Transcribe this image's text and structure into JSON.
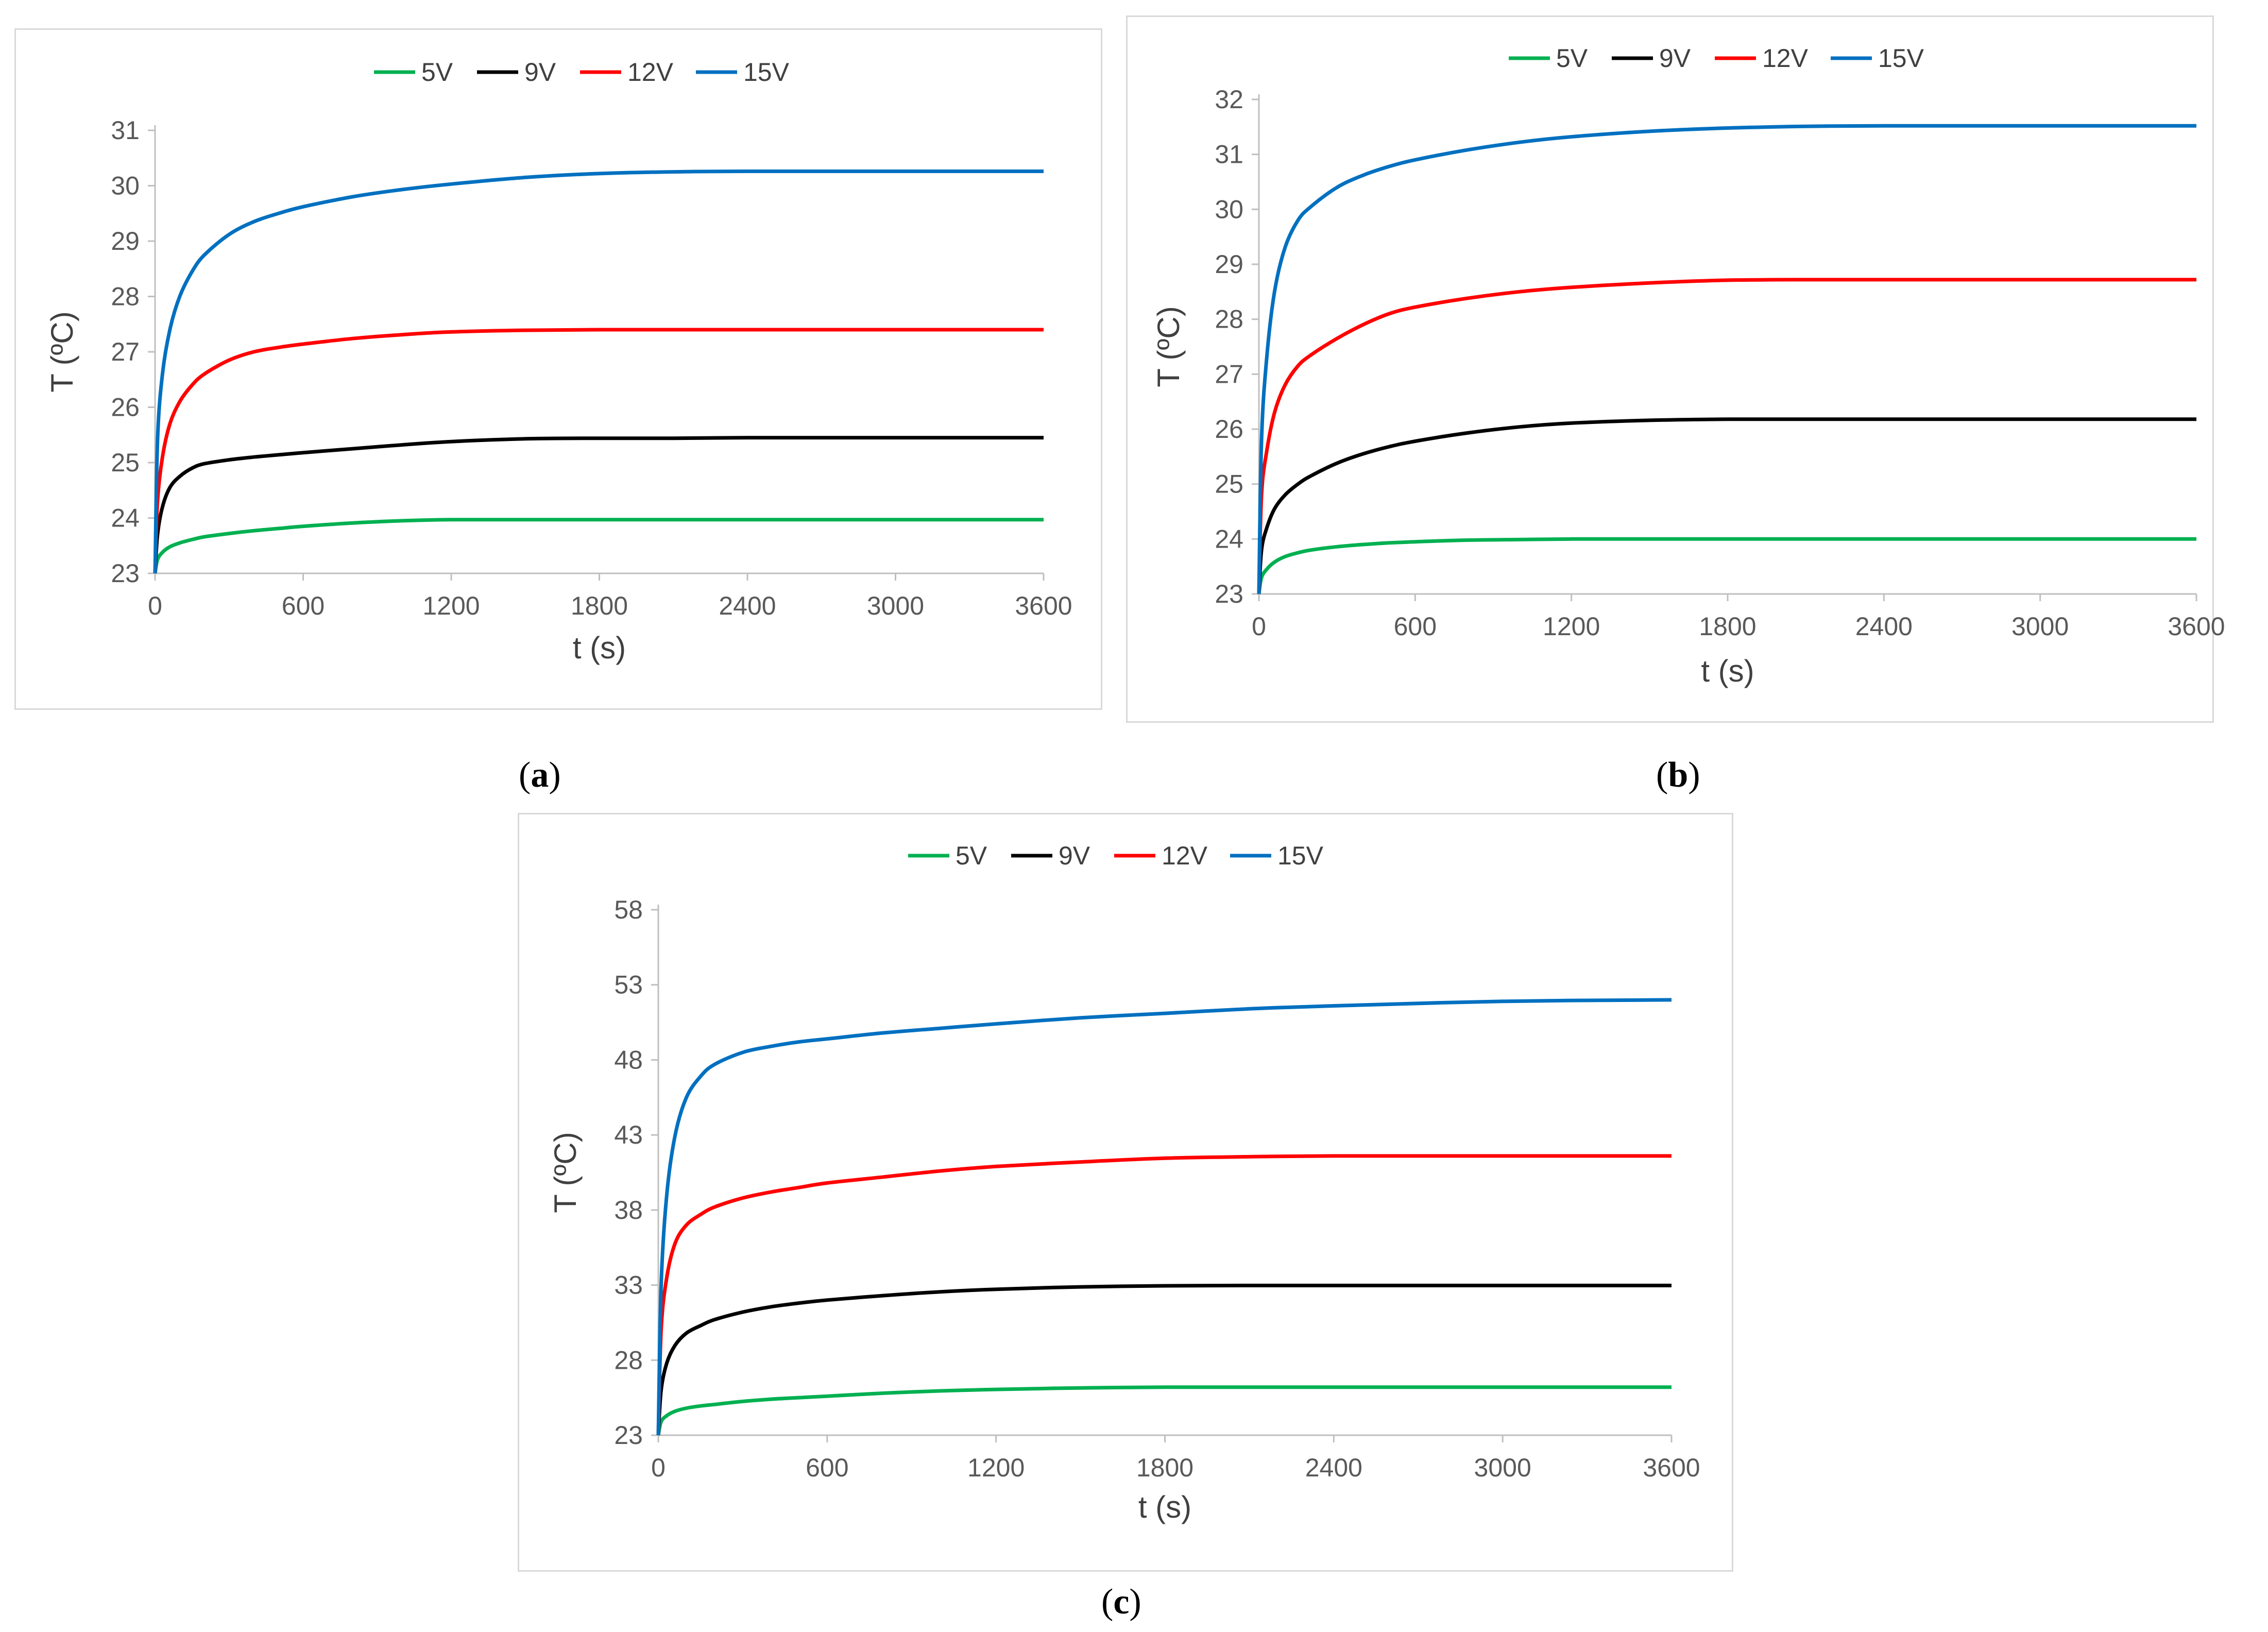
{
  "chart_data": [
    {
      "id": "a",
      "type": "line",
      "caption": "a",
      "title": "",
      "xlabel": "t (s)",
      "ylabel": "T (ºC)",
      "xlim": [
        0,
        3600
      ],
      "ylim": [
        23,
        31
      ],
      "xticks": [
        0,
        600,
        1200,
        1800,
        2400,
        3000,
        3600
      ],
      "yticks": [
        23,
        24,
        25,
        26,
        27,
        28,
        29,
        30,
        31
      ],
      "grid": false,
      "legend_position": "top-center",
      "x": [
        0,
        10,
        30,
        60,
        100,
        150,
        200,
        300,
        400,
        500,
        600,
        800,
        1000,
        1200,
        1500,
        1800,
        2100,
        2400,
        3000,
        3600
      ],
      "series": [
        {
          "name": "5V",
          "color": "#00b050",
          "values": [
            23.0,
            23.25,
            23.38,
            23.48,
            23.55,
            23.61,
            23.66,
            23.72,
            23.77,
            23.81,
            23.85,
            23.91,
            23.95,
            23.97,
            23.97,
            23.97,
            23.97,
            23.97,
            23.97,
            23.97
          ]
        },
        {
          "name": "9V",
          "color": "#000000",
          "values": [
            23.0,
            23.7,
            24.2,
            24.55,
            24.75,
            24.9,
            24.98,
            25.05,
            25.1,
            25.14,
            25.18,
            25.25,
            25.32,
            25.38,
            25.43,
            25.44,
            25.44,
            25.45,
            25.45,
            25.45
          ]
        },
        {
          "name": "12V",
          "color": "#ff0000",
          "values": [
            23.0,
            24.3,
            25.1,
            25.7,
            26.1,
            26.4,
            26.6,
            26.85,
            27.0,
            27.08,
            27.14,
            27.24,
            27.31,
            27.36,
            27.39,
            27.4,
            27.4,
            27.4,
            27.4,
            27.4
          ]
        },
        {
          "name": "15V",
          "color": "#0070c0",
          "values": [
            23.0,
            25.4,
            26.6,
            27.4,
            28.0,
            28.45,
            28.75,
            29.12,
            29.35,
            29.5,
            29.62,
            29.8,
            29.93,
            30.03,
            30.15,
            30.22,
            30.25,
            30.26,
            30.26,
            30.26
          ]
        }
      ]
    },
    {
      "id": "b",
      "type": "line",
      "caption": "b",
      "title": "",
      "xlabel": "t (s)",
      "ylabel": "T (ºC)",
      "xlim": [
        0,
        3600
      ],
      "ylim": [
        23,
        32
      ],
      "xticks": [
        0,
        600,
        1200,
        1800,
        2400,
        3000,
        3600
      ],
      "yticks": [
        23,
        24,
        25,
        26,
        27,
        28,
        29,
        30,
        31,
        32
      ],
      "grid": false,
      "legend_position": "top-center",
      "x": [
        0,
        10,
        30,
        60,
        100,
        150,
        200,
        300,
        400,
        500,
        600,
        800,
        1000,
        1200,
        1500,
        1800,
        2100,
        2400,
        3000,
        3600
      ],
      "series": [
        {
          "name": "5V",
          "color": "#00b050",
          "values": [
            23.0,
            23.3,
            23.45,
            23.58,
            23.68,
            23.75,
            23.8,
            23.86,
            23.9,
            23.93,
            23.95,
            23.98,
            23.99,
            24.0,
            24.0,
            24.0,
            24.0,
            24.0,
            24.0,
            24.0
          ]
        },
        {
          "name": "9V",
          "color": "#000000",
          "values": [
            23.0,
            23.8,
            24.2,
            24.55,
            24.8,
            25.0,
            25.15,
            25.38,
            25.55,
            25.68,
            25.78,
            25.93,
            26.04,
            26.11,
            26.16,
            26.18,
            26.18,
            26.18,
            26.18,
            26.18
          ]
        },
        {
          "name": "12V",
          "color": "#ff0000",
          "values": [
            23.0,
            24.8,
            25.6,
            26.3,
            26.8,
            27.15,
            27.35,
            27.65,
            27.9,
            28.1,
            28.22,
            28.38,
            28.5,
            28.58,
            28.66,
            28.71,
            28.72,
            28.72,
            28.72,
            28.72
          ]
        },
        {
          "name": "15V",
          "color": "#0070c0",
          "values": [
            23.0,
            25.8,
            27.3,
            28.5,
            29.3,
            29.8,
            30.05,
            30.4,
            30.62,
            30.78,
            30.9,
            31.08,
            31.22,
            31.32,
            31.42,
            31.48,
            31.51,
            31.52,
            31.52,
            31.52
          ]
        }
      ]
    },
    {
      "id": "c",
      "type": "line",
      "caption": "c",
      "title": "",
      "xlabel": "t (s)",
      "ylabel": "T (ºC)",
      "xlim": [
        0,
        3600
      ],
      "ylim": [
        23,
        58
      ],
      "xticks": [
        0,
        600,
        1200,
        1800,
        2400,
        3000,
        3600
      ],
      "yticks": [
        23,
        28,
        33,
        38,
        43,
        48,
        53,
        58
      ],
      "grid": false,
      "legend_position": "top-center",
      "x": [
        0,
        10,
        30,
        60,
        100,
        150,
        200,
        300,
        400,
        500,
        600,
        800,
        1000,
        1200,
        1500,
        1800,
        2100,
        2400,
        3000,
        3600
      ],
      "series": [
        {
          "name": "5V",
          "color": "#00b050",
          "values": [
            23.0,
            23.9,
            24.3,
            24.6,
            24.8,
            24.95,
            25.05,
            25.25,
            25.4,
            25.5,
            25.6,
            25.8,
            25.95,
            26.05,
            26.15,
            26.2,
            26.2,
            26.2,
            26.2,
            26.2
          ]
        },
        {
          "name": "9V",
          "color": "#000000",
          "values": [
            23.0,
            26.0,
            27.8,
            29.0,
            29.8,
            30.3,
            30.7,
            31.2,
            31.55,
            31.8,
            32.0,
            32.3,
            32.55,
            32.72,
            32.88,
            32.95,
            32.97,
            32.97,
            32.97,
            32.97
          ]
        },
        {
          "name": "12V",
          "color": "#ff0000",
          "values": [
            23.0,
            30.0,
            33.5,
            35.8,
            37.0,
            37.7,
            38.2,
            38.8,
            39.2,
            39.5,
            39.8,
            40.2,
            40.6,
            40.9,
            41.2,
            41.45,
            41.55,
            41.6,
            41.6,
            41.6
          ]
        },
        {
          "name": "15V",
          "color": "#0070c0",
          "values": [
            23.0,
            33.0,
            39.0,
            43.0,
            45.5,
            46.9,
            47.7,
            48.5,
            48.9,
            49.2,
            49.4,
            49.8,
            50.1,
            50.4,
            50.8,
            51.1,
            51.4,
            51.6,
            51.9,
            52.0
          ]
        }
      ]
    }
  ]
}
